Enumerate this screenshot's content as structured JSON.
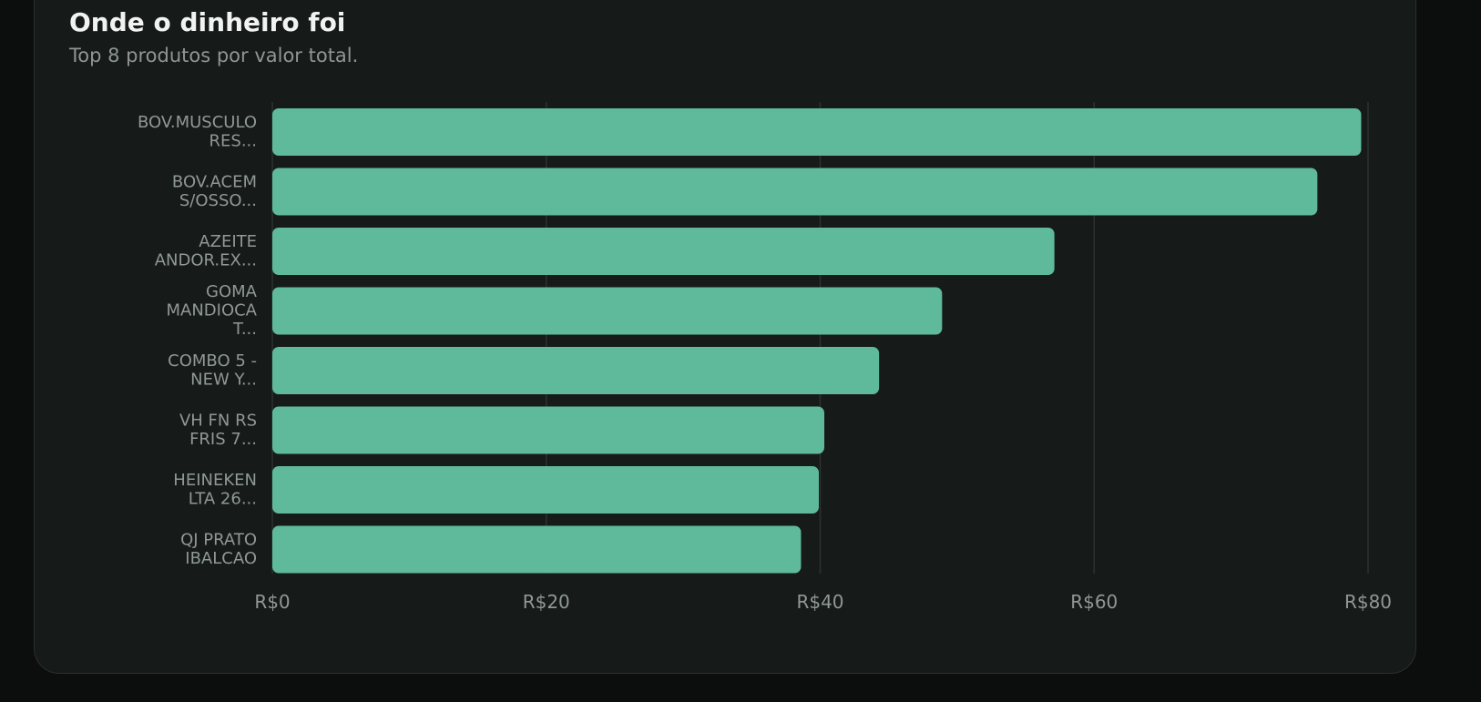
{
  "chart_data": {
    "type": "bar",
    "orientation": "horizontal",
    "title": "Onde o dinheiro foi",
    "subtitle": "Top 8 produtos por valor total.",
    "categories": [
      [
        "BOV.MUSCULO",
        "RES..."
      ],
      [
        "BOV.ACEM",
        "S/OSSO..."
      ],
      [
        "AZEITE",
        "ANDOR.EX..."
      ],
      [
        "GOMA",
        "MANDIOCA",
        "T..."
      ],
      [
        "COMBO 5 -",
        "NEW Y..."
      ],
      [
        "VH FN RS",
        "FRIS 7..."
      ],
      [
        "HEINEKEN",
        "LTA 26..."
      ],
      [
        "QJ PRATO",
        "IBALCAO"
      ]
    ],
    "values": [
      79.5,
      76.3,
      57.1,
      48.9,
      44.3,
      40.3,
      39.9,
      38.6
    ],
    "xlim": [
      0,
      80
    ],
    "xticks": [
      0,
      20,
      40,
      60,
      80
    ],
    "xtick_labels": [
      "R$0",
      "R$20",
      "R$40",
      "R$60",
      "R$80"
    ],
    "grid": "vertical",
    "bar_color": "#5fba9b"
  }
}
